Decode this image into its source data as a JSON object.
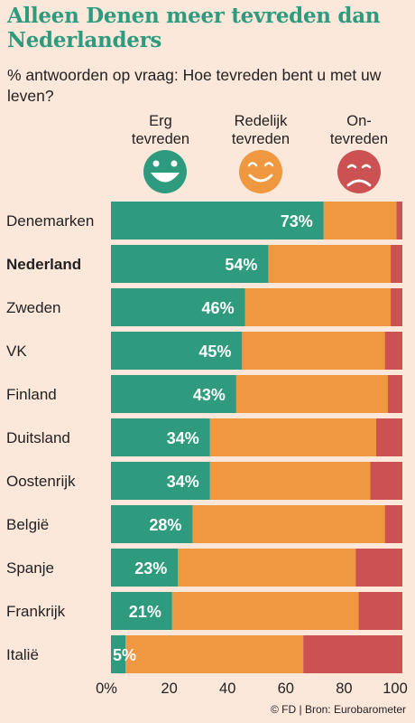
{
  "title": "Alleen Denen meer tevreden dan Nederlanders",
  "subtitle": "% antwoorden op vraag: Hoe tevreden bent u met uw leven?",
  "legend": {
    "very": "Erg tevreden",
    "fair": "Redelijk tevreden",
    "not": "On-tevreden"
  },
  "colors": {
    "very": "#2e9a7e",
    "fair": "#f0983f",
    "not": "#cc5152",
    "label_fill": "#ffffff"
  },
  "footer": "© FD | Bron: Eurobarometer",
  "chart_data": {
    "type": "bar",
    "orientation": "horizontal",
    "stacked": true,
    "categories": [
      "Denemarken",
      "Nederland",
      "Zweden",
      "VK",
      "Finland",
      "Duitsland",
      "Oostenrijk",
      "België",
      "Spanje",
      "Frankrijk",
      "Italië"
    ],
    "bold_categories": [
      "Nederland"
    ],
    "series": [
      {
        "name": "Erg tevreden",
        "values": [
          73,
          54,
          46,
          45,
          43,
          34,
          34,
          28,
          23,
          21,
          5
        ]
      },
      {
        "name": "Redelijk tevreden",
        "values": [
          25,
          42,
          50,
          49,
          52,
          57,
          55,
          66,
          61,
          64,
          61
        ]
      },
      {
        "name": "Ontevreden",
        "values": [
          2,
          4,
          4,
          6,
          5,
          9,
          11,
          6,
          16,
          15,
          34
        ]
      }
    ],
    "data_labels": [
      "73%",
      "54%",
      "46%",
      "45%",
      "43%",
      "34%",
      "34%",
      "28%",
      "23%",
      "21%",
      "5%"
    ],
    "xlim": [
      0,
      100
    ],
    "xticks": [
      "0%",
      "20",
      "40",
      "60",
      "80",
      "100"
    ],
    "grid": false,
    "legend_position": "top"
  }
}
